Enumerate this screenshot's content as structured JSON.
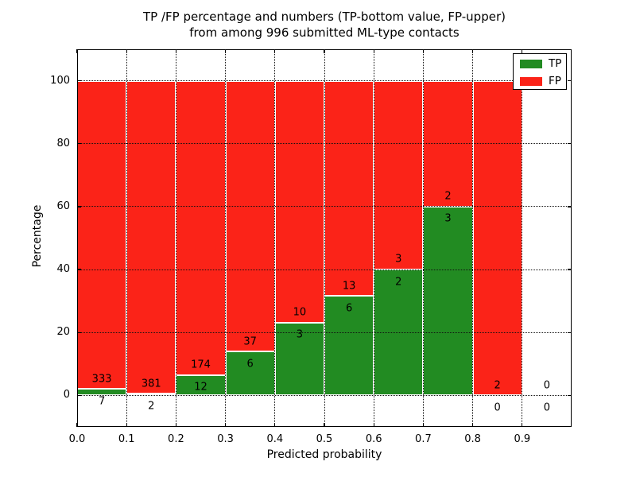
{
  "figure": {
    "title_line1": "TP /FP percentage and numbers (TP-bottom value, FP-upper)",
    "title_line2": "from among 996 submitted ML-type contacts",
    "xlabel": "Predicted probability",
    "ylabel": "Percentage"
  },
  "legend": {
    "items": [
      {
        "label": "TP",
        "color": "#228b22"
      },
      {
        "label": "FP",
        "color": "#fb2318"
      }
    ]
  },
  "chart_data": {
    "type": "bar",
    "stacked": true,
    "title": "TP /FP percentage and numbers (TP-bottom value, FP-upper) from among 996 submitted ML-type contacts",
    "xlabel": "Predicted probability",
    "ylabel": "Percentage",
    "total_contacts": 996,
    "xlim": [
      0.0,
      1.0
    ],
    "ylim": [
      -10,
      110
    ],
    "grid": true,
    "legend_position": "upper right",
    "x_ticks": [
      0.0,
      0.1,
      0.2,
      0.3,
      0.4,
      0.5,
      0.6,
      0.7,
      0.8,
      0.9
    ],
    "x_tick_labels": [
      "0.0",
      "0.1",
      "0.2",
      "0.3",
      "0.4",
      "0.5",
      "0.6",
      "0.7",
      "0.8",
      "0.9"
    ],
    "y_ticks": [
      0,
      20,
      40,
      60,
      80,
      100
    ],
    "y_tick_labels": [
      "0",
      "20",
      "40",
      "60",
      "80",
      "100"
    ],
    "bins": [
      [
        0.0,
        0.1
      ],
      [
        0.1,
        0.2
      ],
      [
        0.2,
        0.3
      ],
      [
        0.3,
        0.4
      ],
      [
        0.4,
        0.5
      ],
      [
        0.5,
        0.6
      ],
      [
        0.6,
        0.7
      ],
      [
        0.7,
        0.8
      ],
      [
        0.8,
        0.9
      ],
      [
        0.9,
        1.0
      ]
    ],
    "series": [
      {
        "name": "TP",
        "color": "#228b22",
        "counts": [
          7,
          2,
          12,
          6,
          3,
          6,
          2,
          3,
          0,
          0
        ],
        "pct": [
          2.06,
          0.52,
          6.45,
          13.95,
          23.08,
          31.58,
          40.0,
          60.0,
          0.0,
          0.0
        ]
      },
      {
        "name": "FP",
        "color": "#fb2318",
        "counts": [
          333,
          381,
          174,
          37,
          10,
          13,
          3,
          2,
          2,
          0
        ],
        "pct": [
          97.94,
          99.48,
          93.55,
          86.05,
          76.92,
          68.42,
          60.0,
          40.0,
          100.0,
          0.0
        ]
      }
    ]
  }
}
